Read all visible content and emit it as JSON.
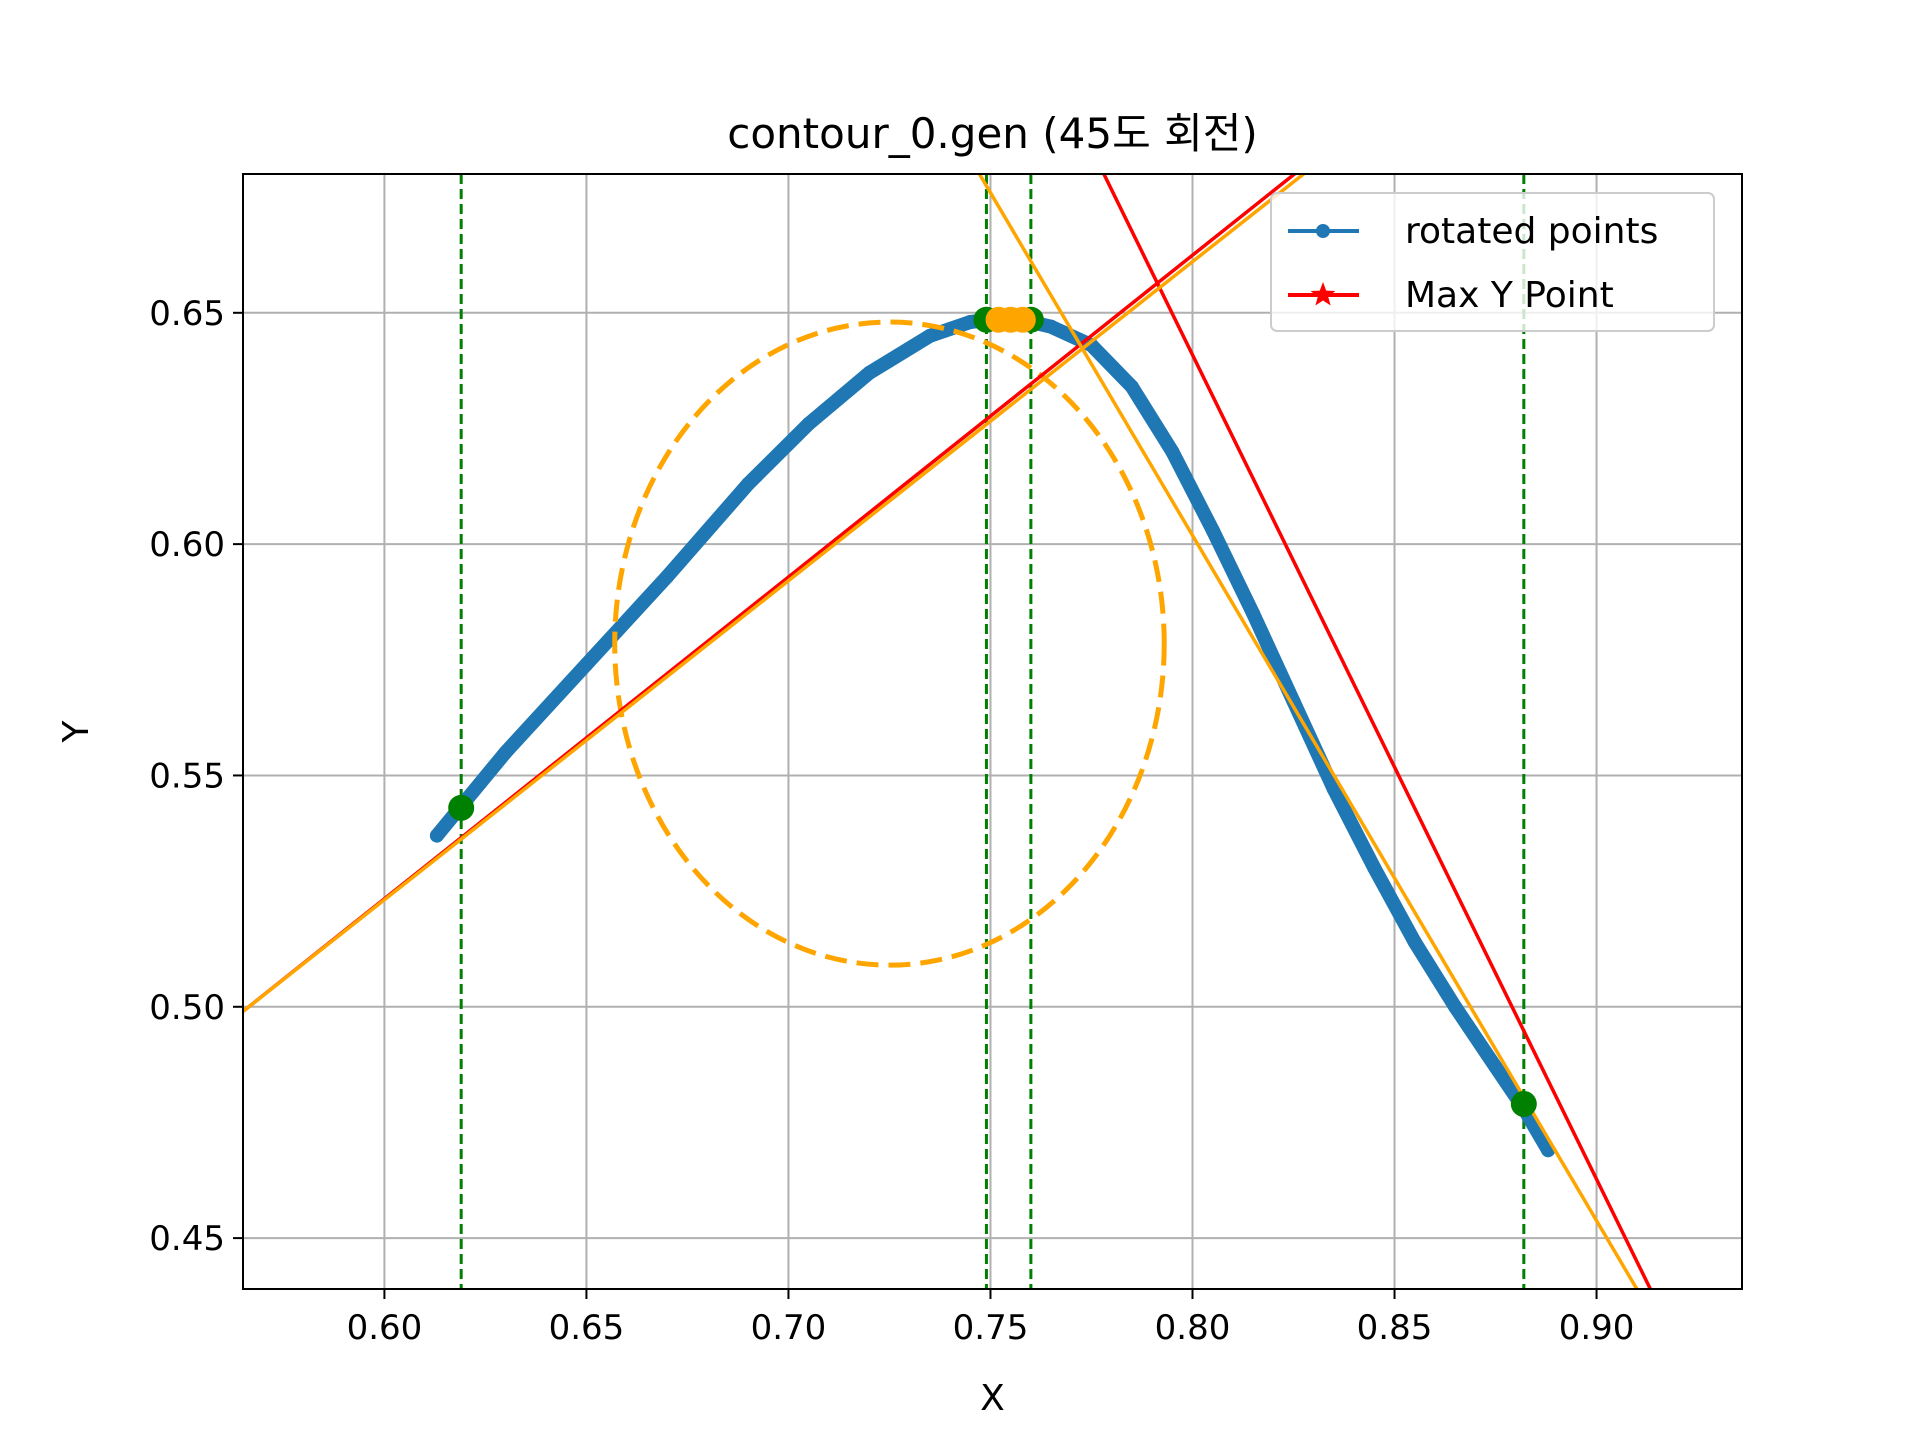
{
  "chart_data": {
    "type": "line",
    "title": "contour_0.gen (45도 회전)",
    "xlabel": "X",
    "ylabel": "Y",
    "xlim": [
      0.565,
      0.936
    ],
    "ylim": [
      0.439,
      0.68
    ],
    "grid": true,
    "legend_position": "top-right",
    "x_ticks": [
      0.6,
      0.65,
      0.7,
      0.75,
      0.8,
      0.85,
      0.9
    ],
    "y_ticks": [
      0.45,
      0.5,
      0.55,
      0.6,
      0.65
    ],
    "x_tick_labels": [
      "0.60",
      "0.65",
      "0.70",
      "0.75",
      "0.80",
      "0.85",
      "0.90"
    ],
    "y_tick_labels": [
      "0.45",
      "0.50",
      "0.55",
      "0.60",
      "0.65"
    ],
    "legend": [
      {
        "label": "rotated points",
        "color": "#1f77b4",
        "marker": "dot"
      },
      {
        "label": "Max Y Point",
        "color": "#ff0000",
        "marker": "star"
      }
    ],
    "series": [
      {
        "name": "rotated points",
        "color": "#1f77b4",
        "style": "line-dots",
        "points": [
          [
            0.613,
            0.537
          ],
          [
            0.63,
            0.555
          ],
          [
            0.65,
            0.574
          ],
          [
            0.67,
            0.593
          ],
          [
            0.69,
            0.613
          ],
          [
            0.705,
            0.626
          ],
          [
            0.72,
            0.637
          ],
          [
            0.735,
            0.645
          ],
          [
            0.745,
            0.648
          ],
          [
            0.755,
            0.649
          ],
          [
            0.765,
            0.647
          ],
          [
            0.775,
            0.643
          ],
          [
            0.785,
            0.634
          ],
          [
            0.795,
            0.62
          ],
          [
            0.805,
            0.603
          ],
          [
            0.815,
            0.585
          ],
          [
            0.825,
            0.566
          ],
          [
            0.835,
            0.547
          ],
          [
            0.845,
            0.53
          ],
          [
            0.855,
            0.514
          ],
          [
            0.865,
            0.5
          ],
          [
            0.875,
            0.487
          ],
          [
            0.882,
            0.478
          ],
          [
            0.888,
            0.469
          ]
        ]
      }
    ],
    "lines": [
      {
        "color": "#ff0000",
        "style": "solid",
        "from": [
          0.565,
          0.499
        ],
        "to": [
          0.9,
          0.732
        ]
      },
      {
        "color": "#ff0000",
        "style": "solid",
        "from": [
          0.75,
          0.73
        ],
        "to": [
          0.915,
          0.436
        ]
      },
      {
        "color": "#ffa500",
        "style": "solid",
        "from": [
          0.565,
          0.499
        ],
        "to": [
          0.9,
          0.73
        ]
      },
      {
        "color": "#ffa500",
        "style": "solid",
        "from": [
          0.7,
          0.75
        ],
        "to": [
          0.912,
          0.436
        ]
      }
    ],
    "ellipse": {
      "color": "#ffa500",
      "style": "dashed",
      "cx": 0.725,
      "cy": 0.5785,
      "rx": 0.068,
      "ry": 0.0695,
      "rotation_deg": 0
    },
    "vlines": [
      {
        "x": 0.619,
        "color": "#008000",
        "style": "dashed"
      },
      {
        "x": 0.749,
        "color": "#008000",
        "style": "dashed"
      },
      {
        "x": 0.76,
        "color": "#008000",
        "style": "dashed"
      },
      {
        "x": 0.882,
        "color": "#008000",
        "style": "dashed"
      }
    ],
    "markers": [
      {
        "x": 0.619,
        "y": 0.543,
        "color": "#008000"
      },
      {
        "x": 0.882,
        "y": 0.479,
        "color": "#008000"
      },
      {
        "x": 0.749,
        "y": 0.6485,
        "color": "#008000"
      },
      {
        "x": 0.76,
        "y": 0.6485,
        "color": "#008000"
      },
      {
        "x": 0.752,
        "y": 0.6485,
        "color": "#ffa500"
      },
      {
        "x": 0.755,
        "y": 0.6485,
        "color": "#ffa500"
      },
      {
        "x": 0.758,
        "y": 0.6485,
        "color": "#ffa500"
      }
    ]
  }
}
